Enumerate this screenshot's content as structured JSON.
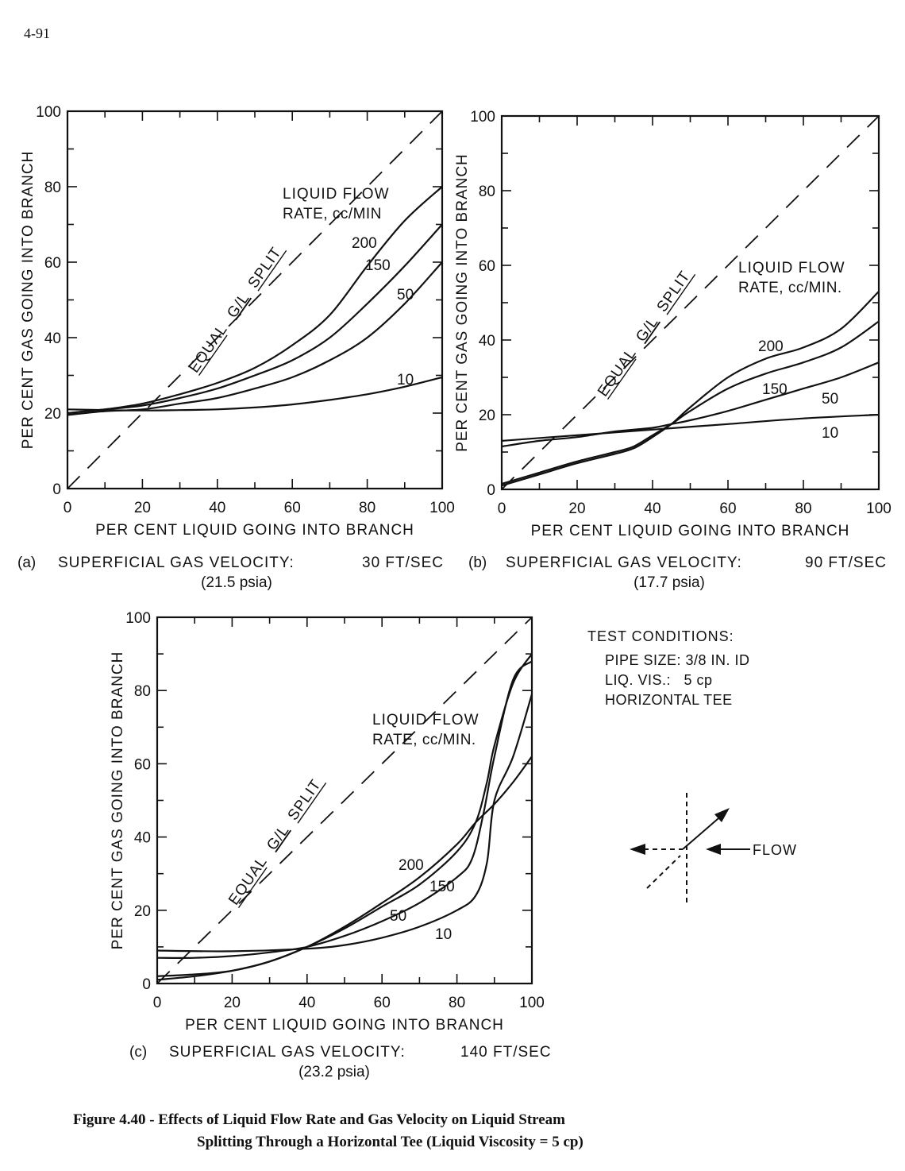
{
  "page_number": "4-91",
  "chart_data": [
    {
      "type": "line",
      "ylabel": "PER CENT GAS GOING INTO BRANCH",
      "xlabel": "PER CENT LIQUID GOING INTO BRANCH",
      "xlim": [
        0,
        100
      ],
      "ylim": [
        0,
        100
      ],
      "xticks": [
        "0",
        "20",
        "40",
        "60",
        "80",
        "100"
      ],
      "yticks": [
        "0",
        "20",
        "40",
        "60",
        "80",
        "100"
      ],
      "reference_line_label": [
        "EQUAL",
        "G/L",
        "SPLIT"
      ],
      "legend_title": [
        "LIQUID FLOW",
        "RATE, cc/MIN"
      ],
      "caption": [
        "(a)",
        "SUPERFICIAL GAS VELOCITY:",
        "30 FT/SEC"
      ],
      "caption_sub": "(21.5 psia)",
      "series": [
        {
          "name": "200",
          "x": [
            0,
            10,
            20,
            30,
            40,
            50,
            60,
            70,
            80,
            90,
            100
          ],
          "y": [
            20,
            21,
            22.5,
            25,
            28,
            32,
            38,
            46,
            59,
            71,
            80
          ]
        },
        {
          "name": "150",
          "x": [
            0,
            10,
            20,
            30,
            40,
            50,
            60,
            70,
            80,
            90,
            100
          ],
          "y": [
            20,
            21,
            22,
            24,
            26.5,
            30,
            34,
            40,
            49,
            59,
            70
          ]
        },
        {
          "name": "50",
          "x": [
            0,
            10,
            20,
            30,
            40,
            50,
            60,
            70,
            80,
            90,
            100
          ],
          "y": [
            19.5,
            20.5,
            21,
            22.5,
            24,
            26.5,
            29.5,
            34,
            40,
            49,
            60
          ]
        },
        {
          "name": "10",
          "x": [
            0,
            10,
            20,
            30,
            40,
            50,
            60,
            70,
            80,
            90,
            100
          ],
          "y": [
            21,
            20.8,
            20.7,
            20.8,
            21,
            21.5,
            22.3,
            23.5,
            25,
            27,
            29.5
          ]
        }
      ]
    },
    {
      "type": "line",
      "ylabel": "PER CENT GAS GOING INTO BRANCH",
      "xlabel": "PER CENT LIQUID GOING INTO BRANCH",
      "xlim": [
        0,
        100
      ],
      "ylim": [
        0,
        100
      ],
      "xticks": [
        "0",
        "20",
        "40",
        "60",
        "80",
        "100"
      ],
      "yticks": [
        "0",
        "20",
        "40",
        "60",
        "80",
        "100"
      ],
      "reference_line_label": [
        "EQUAL",
        "G/L",
        "SPLIT"
      ],
      "legend_title": [
        "LIQUID FLOW",
        "RATE, cc/MIN."
      ],
      "caption": [
        "(b)",
        "SUPERFICIAL GAS VELOCITY:",
        "90 FT/SEC"
      ],
      "caption_sub": "(17.7 psia)",
      "series": [
        {
          "name": "200",
          "x": [
            0,
            10,
            20,
            30,
            35,
            40,
            45,
            50,
            60,
            70,
            80,
            90,
            100
          ],
          "y": [
            1,
            4,
            7,
            9.5,
            11,
            14,
            17.5,
            22,
            30,
            35,
            38,
            43,
            53
          ]
        },
        {
          "name": "150",
          "x": [
            0,
            10,
            20,
            30,
            35,
            40,
            45,
            50,
            60,
            70,
            80,
            90,
            100
          ],
          "y": [
            1.5,
            4.5,
            7.5,
            10,
            11.5,
            14.5,
            17.5,
            21,
            27,
            31,
            34,
            38,
            45
          ]
        },
        {
          "name": "50",
          "x": [
            0,
            10,
            20,
            30,
            40,
            45,
            50,
            60,
            70,
            80,
            90,
            100
          ],
          "y": [
            11.5,
            13,
            14,
            15.5,
            16.5,
            17.5,
            18.5,
            21,
            24,
            27,
            30,
            34
          ]
        },
        {
          "name": "10",
          "x": [
            0,
            20,
            40,
            60,
            80,
            100
          ],
          "y": [
            13,
            14.5,
            16,
            17.5,
            19,
            20
          ]
        }
      ]
    },
    {
      "type": "line",
      "ylabel": "PER CENT GAS GOING INTO BRANCH",
      "xlabel": "PER CENT LIQUID GOING INTO BRANCH",
      "xlim": [
        0,
        100
      ],
      "ylim": [
        0,
        100
      ],
      "xticks": [
        "0",
        "20",
        "40",
        "60",
        "80",
        "100"
      ],
      "yticks": [
        "0",
        "20",
        "40",
        "60",
        "80",
        "100"
      ],
      "reference_line_label": [
        "EQUAL",
        "G/L",
        "SPLIT"
      ],
      "legend_title": [
        "LIQUID FLOW",
        "RATE, cc/MIN."
      ],
      "caption": [
        "(c)",
        "SUPERFICIAL GAS VELOCITY:",
        "140 FT/SEC"
      ],
      "caption_sub": "(23.2 psia)",
      "series": [
        {
          "name": "200",
          "x": [
            0,
            10,
            20,
            30,
            40,
            50,
            60,
            70,
            80,
            85,
            90,
            95,
            100
          ],
          "y": [
            1,
            2,
            3.5,
            6,
            10,
            15.5,
            22,
            29,
            38,
            44,
            49,
            55,
            62
          ]
        },
        {
          "name": "150",
          "x": [
            0,
            10,
            20,
            30,
            40,
            50,
            60,
            70,
            80,
            85,
            88,
            90,
            95,
            100
          ],
          "y": [
            2,
            2.5,
            3.5,
            6,
            10,
            15,
            21,
            27,
            36,
            44,
            55,
            65,
            82,
            90
          ]
        },
        {
          "name": "50",
          "x": [
            0,
            10,
            20,
            30,
            40,
            50,
            60,
            70,
            80,
            84,
            87,
            90,
            95,
            100
          ],
          "y": [
            7,
            7,
            7.5,
            8.5,
            10,
            13,
            17,
            22,
            29,
            34,
            46,
            62,
            83,
            88
          ]
        },
        {
          "name": "10",
          "x": [
            0,
            20,
            40,
            50,
            60,
            70,
            80,
            85,
            88,
            90,
            95,
            100
          ],
          "y": [
            9,
            8.8,
            9.5,
            10.5,
            12.5,
            15.5,
            20,
            24,
            33,
            50,
            62,
            79
          ]
        }
      ]
    }
  ],
  "test_conditions": {
    "title": "TEST CONDITIONS:",
    "lines": [
      "PIPE SIZE: 3/8 IN. ID",
      "LIQ. VIS.:   5 cp",
      "HORIZONTAL TEE"
    ]
  },
  "flow_label": "FLOW",
  "figure_caption": {
    "line1": "Figure 4.40 - Effects of Liquid Flow Rate and Gas Velocity on Liquid Stream",
    "line2": "Splitting Through a Horizontal Tee (Liquid Viscosity = 5 cp)"
  }
}
